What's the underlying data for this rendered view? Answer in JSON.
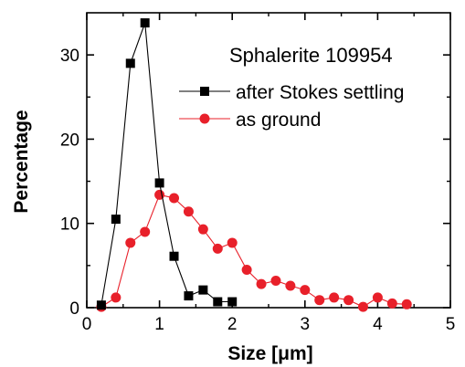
{
  "chart_data": {
    "type": "scatter",
    "annotation": "Sphalerite 109954",
    "xlabel": "Size [μm]",
    "ylabel": "Percentage",
    "xlim": [
      0,
      5
    ],
    "ylim": [
      0,
      35
    ],
    "xticks": [
      "0",
      "1",
      "2",
      "3",
      "4",
      "5"
    ],
    "yticks": [
      "0",
      "10",
      "20",
      "30"
    ],
    "grid": false,
    "legend_position": "top-right",
    "series": [
      {
        "name": "after Stokes settling",
        "color": "#000000",
        "marker": "square",
        "line": "solid",
        "x": [
          0.2,
          0.4,
          0.6,
          0.8,
          1.0,
          1.2,
          1.4,
          1.6,
          1.8,
          2.0
        ],
        "y": [
          0.3,
          10.5,
          29.0,
          33.8,
          14.8,
          6.1,
          1.4,
          2.1,
          0.7,
          0.7
        ]
      },
      {
        "name": "as ground",
        "color": "#e8202a",
        "marker": "circle",
        "line": "solid",
        "x": [
          0.2,
          0.4,
          0.6,
          0.8,
          1.0,
          1.2,
          1.4,
          1.6,
          1.8,
          2.0,
          2.2,
          2.4,
          2.6,
          2.8,
          3.0,
          3.2,
          3.4,
          3.6,
          3.8,
          4.0,
          4.2,
          4.4
        ],
        "y": [
          0.1,
          1.2,
          7.7,
          9.0,
          13.4,
          13.0,
          11.4,
          9.3,
          7.0,
          7.7,
          4.5,
          2.8,
          3.2,
          2.6,
          2.1,
          0.9,
          1.2,
          0.9,
          0.1,
          1.2,
          0.5,
          0.4
        ]
      }
    ]
  }
}
